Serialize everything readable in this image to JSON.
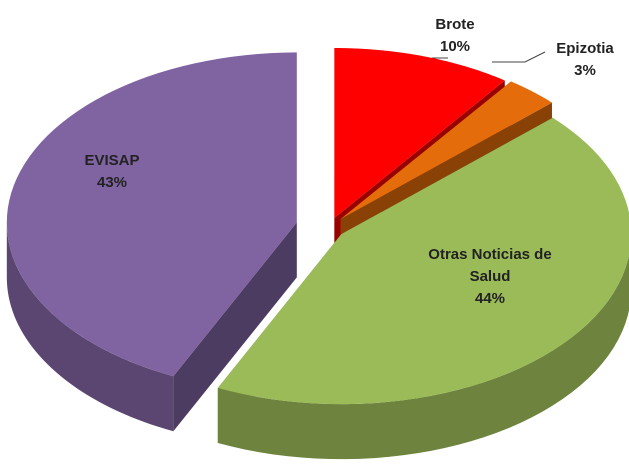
{
  "chart_data": {
    "type": "pie",
    "view": "3d",
    "categories": [
      "Brote",
      "Epizotia",
      "Otras Noticias de Salud",
      "EVISAP"
    ],
    "values": [
      10,
      3,
      44,
      43
    ],
    "value_labels": [
      "10%",
      "3%",
      "44%",
      "43%"
    ],
    "colors": [
      "#ff0000",
      "#e46c0a",
      "#9bbb59",
      "#8064a2"
    ]
  }
}
